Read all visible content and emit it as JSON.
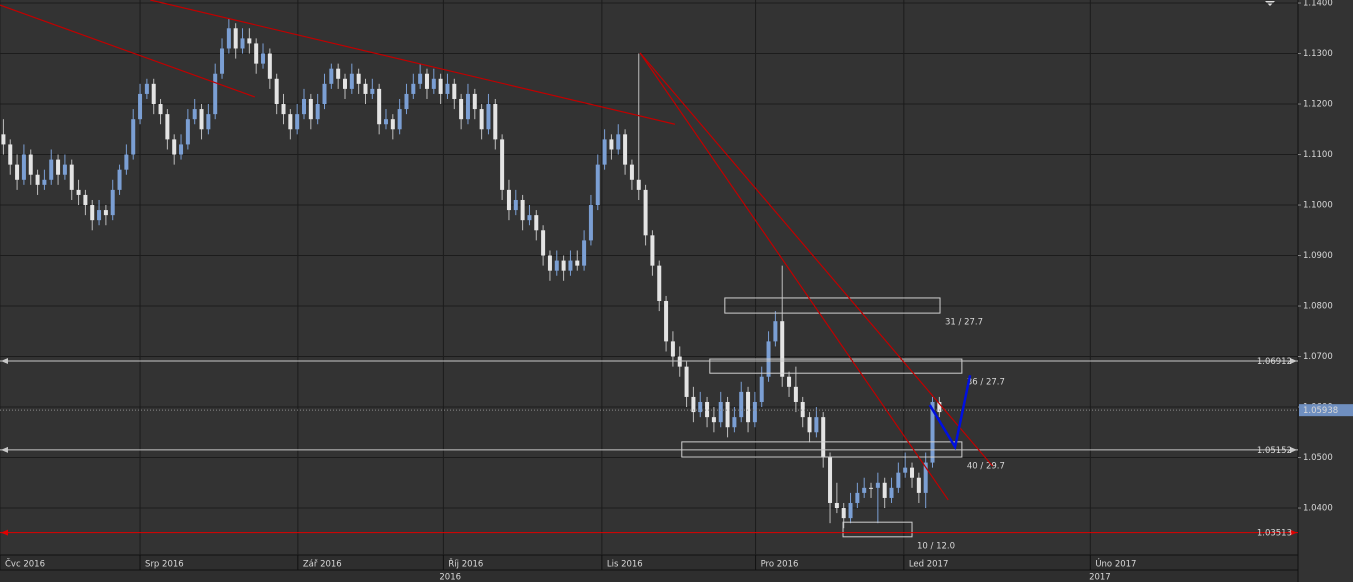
{
  "chart_data": {
    "type": "candlestick",
    "grid": true,
    "xlim": [
      0,
      190
    ],
    "ylim": [
      1.0307,
      1.1406
    ],
    "yticks": [
      {
        "value": 1.14,
        "label": "1.1400"
      },
      {
        "value": 1.13,
        "label": "1.1300"
      },
      {
        "value": 1.12,
        "label": "1.1200"
      },
      {
        "value": 1.11,
        "label": "1.1100"
      },
      {
        "value": 1.1,
        "label": "1.1000"
      },
      {
        "value": 1.09,
        "label": "1.0900"
      },
      {
        "value": 1.08,
        "label": "1.0800"
      },
      {
        "value": 1.07,
        "label": "1.0700"
      },
      {
        "value": 1.06,
        "label": "1.0600"
      },
      {
        "value": 1.05,
        "label": "1.0500"
      },
      {
        "value": 1.04,
        "label": "1.0400"
      }
    ],
    "xticks": [
      {
        "value": 0,
        "label": "Čvc 2016"
      },
      {
        "value": 20.5,
        "label": "Srp 2016"
      },
      {
        "value": 43.6,
        "label": "Zář 2016"
      },
      {
        "value": 64.9,
        "label": "Říj 2016"
      },
      {
        "value": 88.1,
        "label": "Lis 2016"
      },
      {
        "value": 110.6,
        "label": "Pro 2016"
      },
      {
        "value": 132.3,
        "label": "Led 2017"
      },
      {
        "value": 159.6,
        "label": "Úno 2017"
      }
    ],
    "year_ticks": [
      {
        "value": 65.9,
        "label": "2016"
      },
      {
        "value": 161,
        "label": "2017"
      }
    ],
    "up_color": "#7b9fd4",
    "down_color": "#e4e4e4",
    "ohlc": [
      [
        1.114,
        1.117,
        1.11,
        1.112
      ],
      [
        1.112,
        1.113,
        1.106,
        1.108
      ],
      [
        1.108,
        1.11,
        1.103,
        1.105
      ],
      [
        1.105,
        1.112,
        1.104,
        1.11
      ],
      [
        1.11,
        1.111,
        1.104,
        1.106
      ],
      [
        1.106,
        1.107,
        1.102,
        1.104
      ],
      [
        1.104,
        1.107,
        1.103,
        1.105
      ],
      [
        1.105,
        1.111,
        1.104,
        1.109
      ],
      [
        1.109,
        1.11,
        1.104,
        1.106
      ],
      [
        1.106,
        1.11,
        1.105,
        1.108
      ],
      [
        1.108,
        1.109,
        1.101,
        1.103
      ],
      [
        1.103,
        1.105,
        1.1,
        1.102
      ],
      [
        1.102,
        1.103,
        1.098,
        1.1
      ],
      [
        1.1,
        1.101,
        1.095,
        1.097
      ],
      [
        1.097,
        1.101,
        1.096,
        1.099
      ],
      [
        1.099,
        1.1,
        1.096,
        1.098
      ],
      [
        1.098,
        1.105,
        1.097,
        1.103
      ],
      [
        1.103,
        1.108,
        1.102,
        1.107
      ],
      [
        1.107,
        1.112,
        1.106,
        1.11
      ],
      [
        1.11,
        1.119,
        1.109,
        1.117
      ],
      [
        1.117,
        1.124,
        1.116,
        1.122
      ],
      [
        1.122,
        1.125,
        1.121,
        1.124
      ],
      [
        1.124,
        1.125,
        1.118,
        1.12
      ],
      [
        1.12,
        1.121,
        1.116,
        1.118
      ],
      [
        1.118,
        1.119,
        1.111,
        1.113
      ],
      [
        1.113,
        1.114,
        1.108,
        1.11
      ],
      [
        1.11,
        1.114,
        1.109,
        1.112
      ],
      [
        1.112,
        1.119,
        1.111,
        1.117
      ],
      [
        1.117,
        1.121,
        1.116,
        1.119
      ],
      [
        1.119,
        1.12,
        1.113,
        1.115
      ],
      [
        1.115,
        1.12,
        1.114,
        1.118
      ],
      [
        1.118,
        1.128,
        1.117,
        1.126
      ],
      [
        1.126,
        1.133,
        1.125,
        1.131
      ],
      [
        1.131,
        1.137,
        1.13,
        1.135
      ],
      [
        1.135,
        1.136,
        1.129,
        1.131
      ],
      [
        1.131,
        1.135,
        1.13,
        1.133
      ],
      [
        1.133,
        1.135,
        1.13,
        1.132
      ],
      [
        1.132,
        1.133,
        1.126,
        1.128
      ],
      [
        1.128,
        1.132,
        1.127,
        1.13
      ],
      [
        1.13,
        1.131,
        1.123,
        1.125
      ],
      [
        1.125,
        1.126,
        1.118,
        1.12
      ],
      [
        1.12,
        1.122,
        1.116,
        1.118
      ],
      [
        1.118,
        1.119,
        1.113,
        1.115
      ],
      [
        1.115,
        1.12,
        1.114,
        1.118
      ],
      [
        1.118,
        1.123,
        1.117,
        1.121
      ],
      [
        1.121,
        1.122,
        1.115,
        1.117
      ],
      [
        1.117,
        1.122,
        1.116,
        1.12
      ],
      [
        1.12,
        1.126,
        1.119,
        1.124
      ],
      [
        1.124,
        1.128,
        1.123,
        1.127
      ],
      [
        1.127,
        1.128,
        1.123,
        1.125
      ],
      [
        1.125,
        1.126,
        1.121,
        1.123
      ],
      [
        1.123,
        1.128,
        1.122,
        1.126
      ],
      [
        1.126,
        1.127,
        1.122,
        1.124
      ],
      [
        1.124,
        1.125,
        1.12,
        1.122
      ],
      [
        1.122,
        1.125,
        1.121,
        1.123
      ],
      [
        1.123,
        1.124,
        1.114,
        1.116
      ],
      [
        1.116,
        1.119,
        1.115,
        1.117
      ],
      [
        1.117,
        1.118,
        1.113,
        1.115
      ],
      [
        1.115,
        1.121,
        1.114,
        1.119
      ],
      [
        1.119,
        1.124,
        1.118,
        1.122
      ],
      [
        1.122,
        1.126,
        1.121,
        1.124
      ],
      [
        1.124,
        1.128,
        1.123,
        1.126
      ],
      [
        1.126,
        1.127,
        1.121,
        1.123
      ],
      [
        1.123,
        1.127,
        1.122,
        1.125
      ],
      [
        1.125,
        1.126,
        1.12,
        1.122
      ],
      [
        1.122,
        1.126,
        1.121,
        1.124
      ],
      [
        1.124,
        1.125,
        1.119,
        1.121
      ],
      [
        1.121,
        1.122,
        1.115,
        1.117
      ],
      [
        1.117,
        1.124,
        1.116,
        1.122
      ],
      [
        1.122,
        1.123,
        1.117,
        1.119
      ],
      [
        1.119,
        1.12,
        1.113,
        1.115
      ],
      [
        1.115,
        1.122,
        1.114,
        1.12
      ],
      [
        1.12,
        1.121,
        1.111,
        1.113
      ],
      [
        1.113,
        1.114,
        1.101,
        1.103
      ],
      [
        1.103,
        1.105,
        1.097,
        1.099
      ],
      [
        1.099,
        1.103,
        1.098,
        1.101
      ],
      [
        1.101,
        1.102,
        1.095,
        1.097
      ],
      [
        1.097,
        1.1,
        1.096,
        1.098
      ],
      [
        1.098,
        1.099,
        1.093,
        1.095
      ],
      [
        1.095,
        1.096,
        1.088,
        1.09
      ],
      [
        1.09,
        1.091,
        1.085,
        1.087
      ],
      [
        1.087,
        1.091,
        1.086,
        1.089
      ],
      [
        1.089,
        1.09,
        1.085,
        1.087
      ],
      [
        1.087,
        1.091,
        1.086,
        1.089
      ],
      [
        1.089,
        1.091,
        1.087,
        1.088
      ],
      [
        1.088,
        1.095,
        1.087,
        1.093
      ],
      [
        1.093,
        1.102,
        1.092,
        1.1
      ],
      [
        1.1,
        1.11,
        1.099,
        1.108
      ],
      [
        1.108,
        1.115,
        1.107,
        1.113
      ],
      [
        1.113,
        1.114,
        1.109,
        1.111
      ],
      [
        1.111,
        1.116,
        1.11,
        1.114
      ],
      [
        1.114,
        1.115,
        1.106,
        1.108
      ],
      [
        1.108,
        1.109,
        1.103,
        1.105
      ],
      [
        1.105,
        1.13,
        1.101,
        1.103
      ],
      [
        1.103,
        1.104,
        1.092,
        1.094
      ],
      [
        1.094,
        1.095,
        1.086,
        1.088
      ],
      [
        1.088,
        1.089,
        1.079,
        1.081
      ],
      [
        1.081,
        1.082,
        1.071,
        1.073
      ],
      [
        1.073,
        1.075,
        1.068,
        1.07
      ],
      [
        1.07,
        1.072,
        1.066,
        1.068
      ],
      [
        1.068,
        1.069,
        1.06,
        1.062
      ],
      [
        1.062,
        1.064,
        1.057,
        1.059
      ],
      [
        1.059,
        1.063,
        1.058,
        1.061
      ],
      [
        1.061,
        1.062,
        1.056,
        1.058
      ],
      [
        1.058,
        1.06,
        1.055,
        1.057
      ],
      [
        1.057,
        1.063,
        1.056,
        1.061
      ],
      [
        1.061,
        1.062,
        1.054,
        1.056
      ],
      [
        1.056,
        1.06,
        1.055,
        1.058
      ],
      [
        1.058,
        1.065,
        1.057,
        1.063
      ],
      [
        1.063,
        1.064,
        1.055,
        1.057
      ],
      [
        1.057,
        1.063,
        1.056,
        1.061
      ],
      [
        1.061,
        1.068,
        1.06,
        1.066
      ],
      [
        1.066,
        1.075,
        1.065,
        1.073
      ],
      [
        1.073,
        1.079,
        1.072,
        1.077
      ],
      [
        1.077,
        1.088,
        1.064,
        1.066
      ],
      [
        1.066,
        1.067,
        1.062,
        1.064
      ],
      [
        1.064,
        1.068,
        1.059,
        1.061
      ],
      [
        1.061,
        1.062,
        1.056,
        1.058
      ],
      [
        1.058,
        1.059,
        1.053,
        1.055
      ],
      [
        1.055,
        1.06,
        1.054,
        1.058
      ],
      [
        1.058,
        1.059,
        1.048,
        1.05
      ],
      [
        1.05,
        1.051,
        1.037,
        1.041
      ],
      [
        1.041,
        1.045,
        1.039,
        1.04
      ],
      [
        1.04,
        1.041,
        1.036,
        1.038
      ],
      [
        1.038,
        1.043,
        1.037,
        1.041
      ],
      [
        1.041,
        1.045,
        1.04,
        1.043
      ],
      [
        1.043,
        1.046,
        1.042,
        1.044
      ],
      [
        1.044,
        1.045,
        1.042,
        1.044
      ],
      [
        1.044,
        1.047,
        1.037,
        1.045
      ],
      [
        1.045,
        1.046,
        1.04,
        1.042
      ],
      [
        1.042,
        1.046,
        1.041,
        1.044
      ],
      [
        1.044,
        1.049,
        1.043,
        1.047
      ],
      [
        1.047,
        1.051,
        1.046,
        1.048
      ],
      [
        1.048,
        1.049,
        1.044,
        1.046
      ],
      [
        1.046,
        1.047,
        1.041,
        1.043
      ],
      [
        1.043,
        1.051,
        1.04,
        1.049
      ],
      [
        1.049,
        1.062,
        1.048,
        1.061
      ],
      [
        1.061,
        1.062,
        1.058,
        1.059
      ]
    ],
    "hlines": [
      {
        "value": 1.06912,
        "color": "#c8c8c8"
      },
      {
        "value": 1.05152,
        "color": "#c8c8c8"
      },
      {
        "value": 1.03513,
        "color": "#e00000"
      }
    ],
    "last_price": {
      "value": 1.05938,
      "color": "#6f8fc0"
    },
    "trendlines": [
      {
        "x": [
          0,
          37.3
        ],
        "y": [
          1.1396,
          1.1214
        ],
        "color": "#c00000"
      },
      {
        "x": [
          22.0,
          98.8
        ],
        "y": [
          1.1406,
          1.116
        ],
        "color": "#c00000"
      },
      {
        "x": [
          93.7,
          145.3
        ],
        "y": [
          1.1301,
          1.0483
        ],
        "color": "#c00000"
      },
      {
        "x": [
          93.7,
          138.8
        ],
        "y": [
          1.1301,
          1.0416
        ],
        "color": "#c00000"
      }
    ],
    "projection": {
      "x": [
        136.1,
        139.8,
        142.0
      ],
      "y": [
        1.0604,
        1.0521,
        1.0663
      ],
      "color": "#0010e0"
    },
    "zones": [
      {
        "label": "31 / 27.7",
        "x": [
          106.1,
          137.6
        ],
        "y": [
          1.0816,
          1.0786
        ]
      },
      {
        "label": "36 / 27.7",
        "x": [
          103.9,
          140.8
        ],
        "y": [
          1.0695,
          1.0667
        ]
      },
      {
        "label": "40 / 29.7",
        "x": [
          99.8,
          140.8
        ],
        "y": [
          1.0531,
          1.0501
        ]
      },
      {
        "label": "10 / 12.0",
        "x": [
          123.4,
          133.5
        ],
        "y": [
          1.0372,
          1.0343
        ]
      }
    ]
  }
}
